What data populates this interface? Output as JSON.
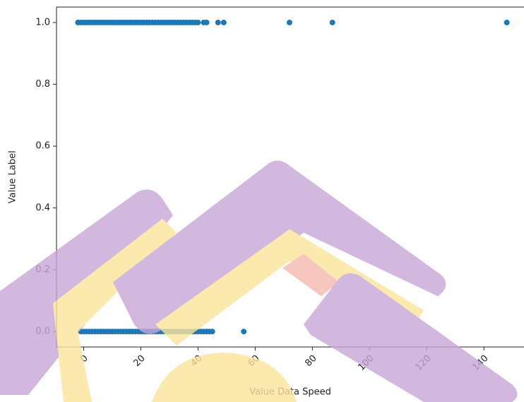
{
  "chart_data": {
    "type": "scatter",
    "x_label": "Value Data Speed",
    "y_label": "Value Label",
    "color": "#1f77b4",
    "x": [
      -2,
      -1,
      0,
      1,
      2,
      3,
      4,
      5,
      6,
      7,
      8,
      9,
      10,
      11,
      12,
      13,
      14,
      15,
      16,
      17,
      18,
      19,
      20,
      21,
      22,
      23,
      24,
      25,
      26,
      27,
      28,
      29,
      30,
      31,
      32,
      33,
      34,
      35,
      36,
      37,
      38,
      39,
      40,
      42,
      43,
      47,
      49,
      72,
      87,
      148,
      -1,
      0,
      1,
      2,
      3,
      4,
      5,
      6,
      7,
      8,
      9,
      10,
      11,
      12,
      13,
      14,
      15,
      16,
      17,
      18,
      19,
      20,
      21,
      22,
      23,
      24,
      25,
      26,
      27,
      28,
      29,
      30,
      31,
      32,
      33,
      34,
      35,
      36,
      37,
      38,
      39,
      40,
      41,
      42,
      43,
      44,
      45,
      56
    ],
    "y": [
      1,
      1,
      1,
      1,
      1,
      1,
      1,
      1,
      1,
      1,
      1,
      1,
      1,
      1,
      1,
      1,
      1,
      1,
      1,
      1,
      1,
      1,
      1,
      1,
      1,
      1,
      1,
      1,
      1,
      1,
      1,
      1,
      1,
      1,
      1,
      1,
      1,
      1,
      1,
      1,
      1,
      1,
      1,
      1,
      1,
      1,
      1,
      1,
      1,
      1,
      0,
      0,
      0,
      0,
      0,
      0,
      0,
      0,
      0,
      0,
      0,
      0,
      0,
      0,
      0,
      0,
      0,
      0,
      0,
      0,
      0,
      0,
      0,
      0,
      0,
      0,
      0,
      0,
      0,
      0,
      0,
      0,
      0,
      0,
      0,
      0,
      0,
      0,
      0,
      0,
      0,
      0,
      0,
      0,
      0,
      0,
      0,
      0
    ],
    "xlim": [
      -9.5,
      155.5
    ],
    "ylim": [
      -0.05,
      1.05
    ],
    "xticks": [
      0,
      20,
      40,
      60,
      80,
      100,
      120,
      140
    ],
    "yticks": [
      {
        "value": 0,
        "label": "0.0"
      },
      0.2,
      0.4,
      0.6,
      0.8,
      {
        "value": 1,
        "label": "1.0"
      }
    ]
  }
}
